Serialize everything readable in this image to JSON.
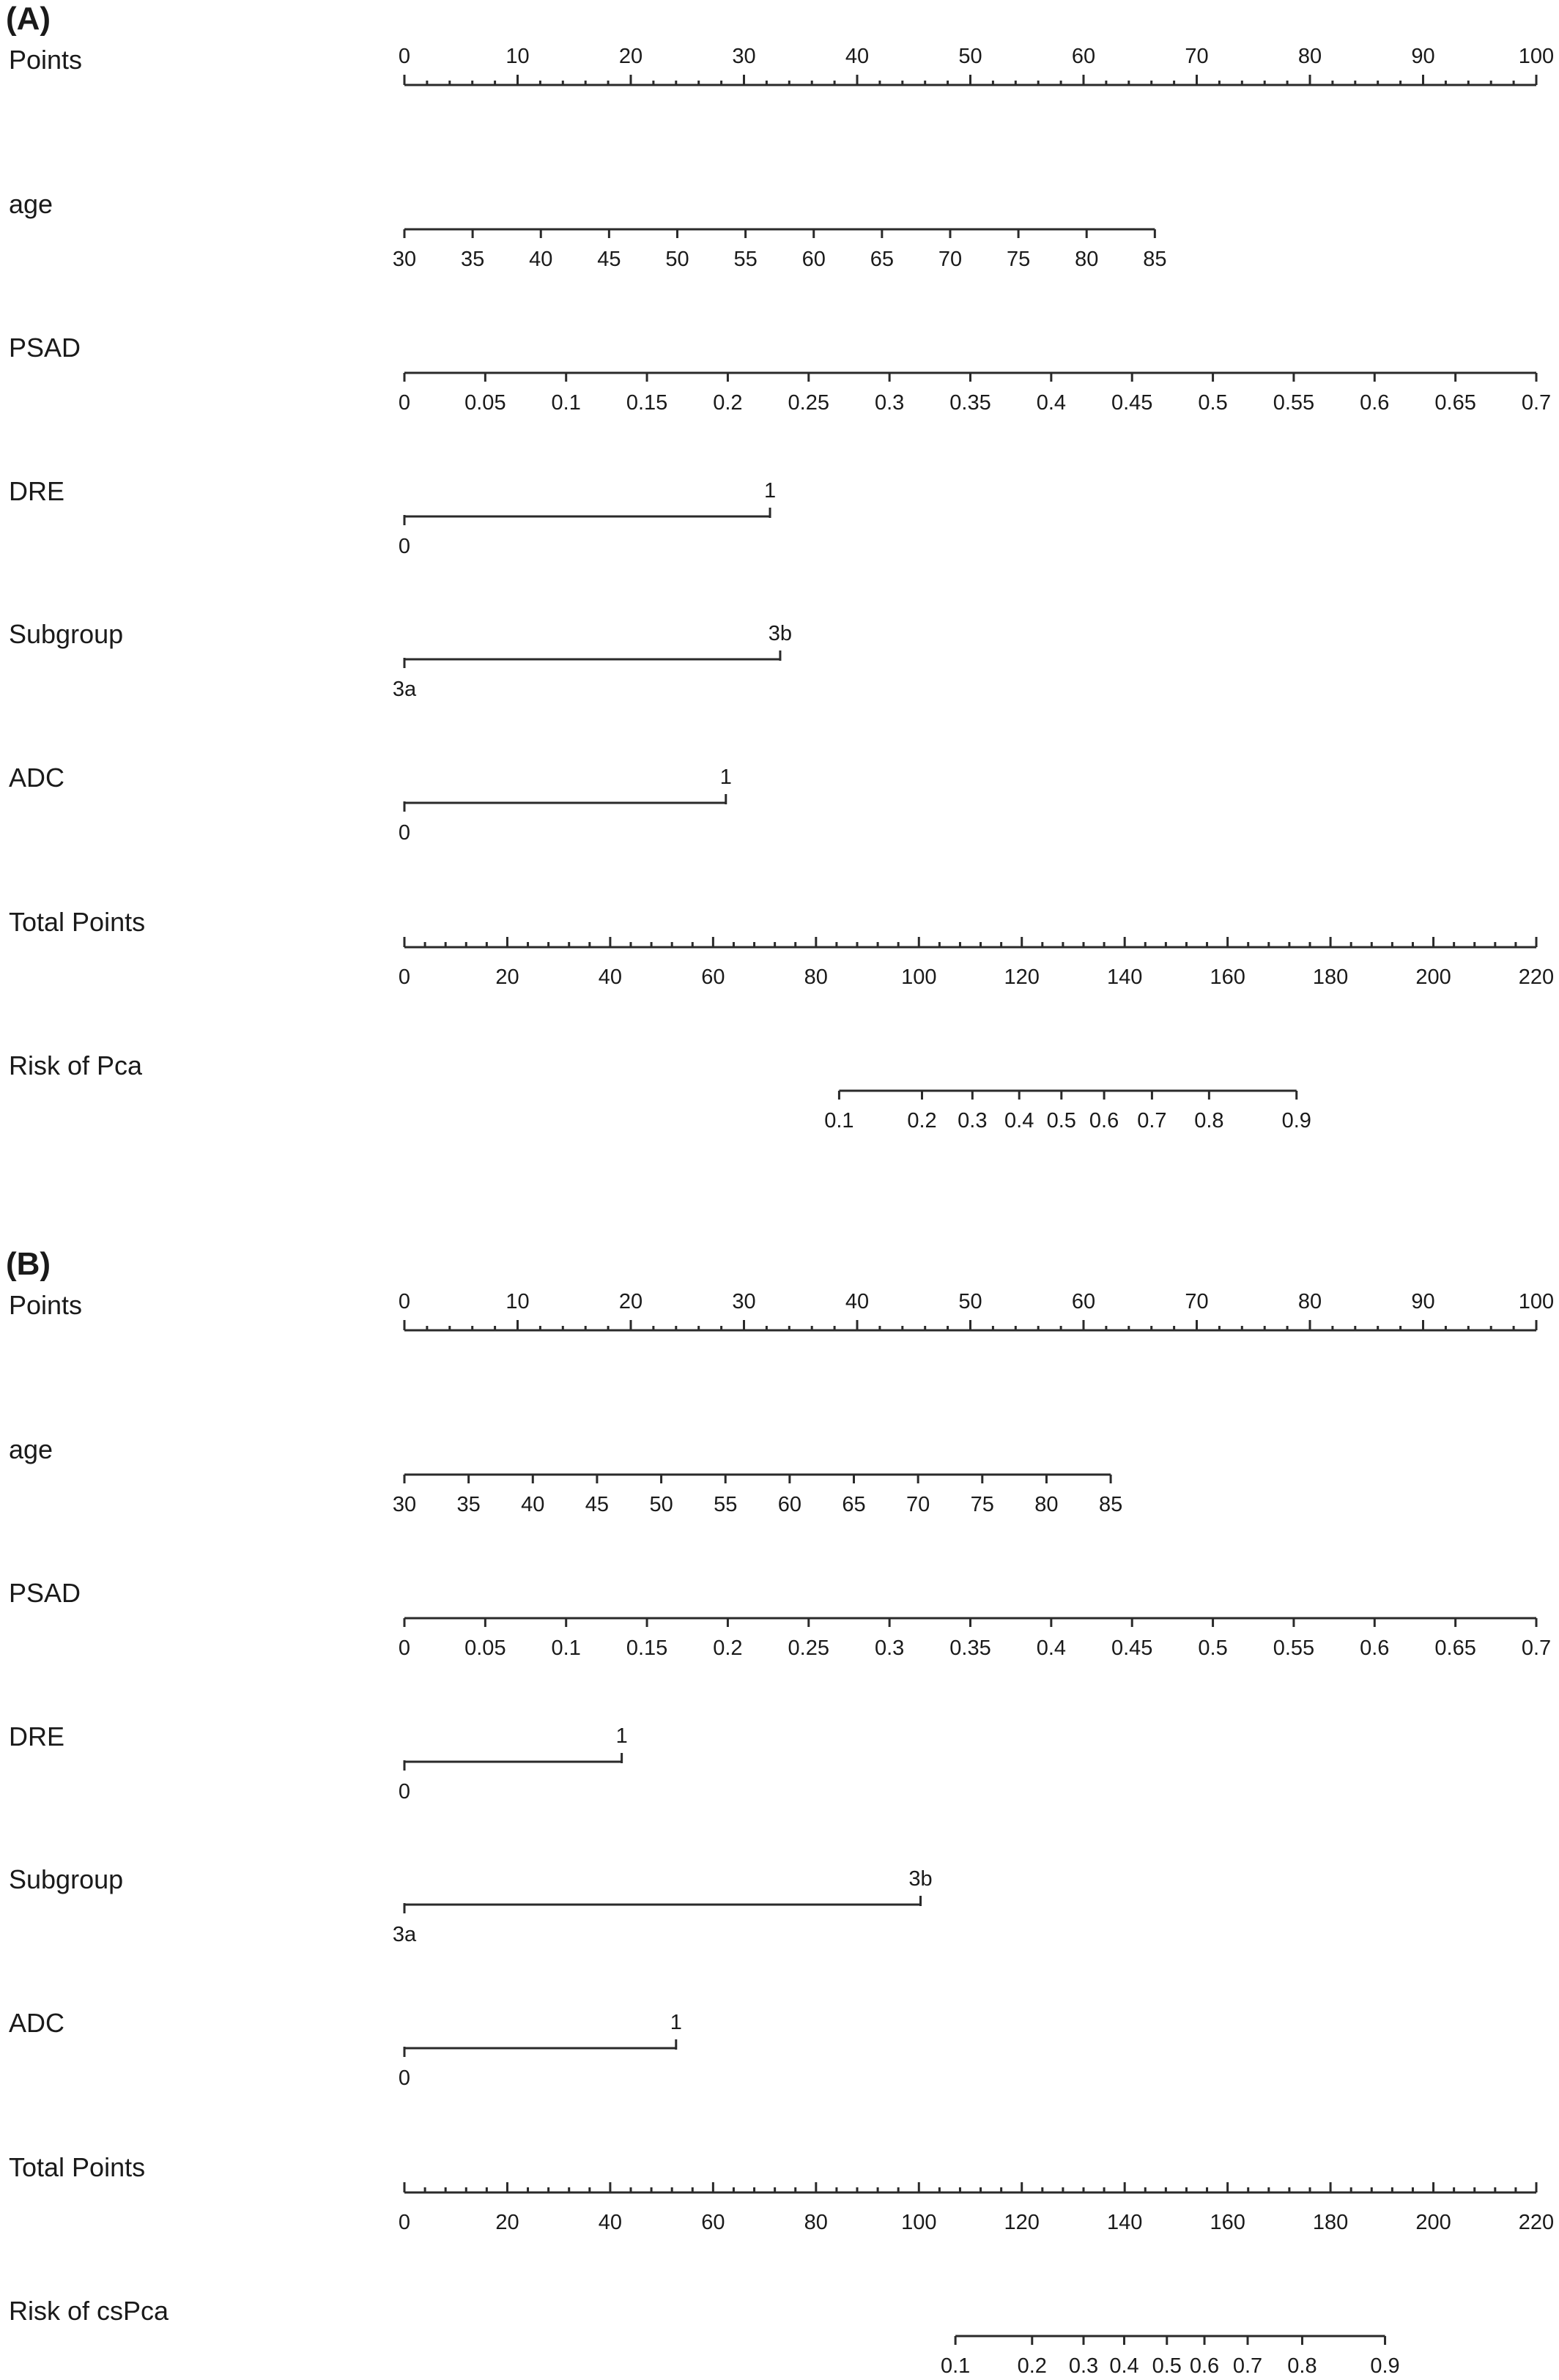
{
  "chart_data": [
    {
      "type": "nomogram",
      "panel_label": "(A)",
      "points_scale": [
        0,
        100
      ],
      "rows": [
        {
          "label": "Points",
          "kind": "points",
          "ticks": [
            0,
            10,
            20,
            30,
            40,
            50,
            60,
            70,
            80,
            90,
            100
          ],
          "minor_step": 2
        },
        {
          "label": "age",
          "kind": "continuous",
          "ticks": [
            30,
            35,
            40,
            45,
            50,
            55,
            60,
            65,
            70,
            75,
            80,
            85
          ],
          "points_range": [
            0,
            66.3
          ]
        },
        {
          "label": "PSAD",
          "kind": "continuous",
          "ticks": [
            0,
            0.05,
            0.1,
            0.15,
            0.2,
            0.25,
            0.3,
            0.35,
            0.4,
            0.45,
            0.5,
            0.55,
            0.6,
            0.65,
            0.7
          ],
          "points_range": [
            0,
            100
          ]
        },
        {
          "label": "DRE",
          "kind": "categorical",
          "levels": [
            {
              "name": "0",
              "points": 0
            },
            {
              "name": "1",
              "points": 32.3
            }
          ]
        },
        {
          "label": "Subgroup",
          "kind": "categorical",
          "levels": [
            {
              "name": "3a",
              "points": 0
            },
            {
              "name": "3b",
              "points": 33.2
            }
          ]
        },
        {
          "label": "ADC",
          "kind": "categorical",
          "levels": [
            {
              "name": "0",
              "points": 0
            },
            {
              "name": "1",
              "points": 28.4
            }
          ]
        },
        {
          "label": "Total Points",
          "kind": "total",
          "ticks": [
            0,
            20,
            40,
            60,
            80,
            100,
            120,
            140,
            160,
            180,
            200,
            220
          ],
          "range": [
            0,
            220
          ],
          "minor_step": 4
        },
        {
          "label": "Risk of Pca",
          "kind": "risk",
          "ticks": [
            {
              "label": "0.1",
              "total": 84.5
            },
            {
              "label": "0.2",
              "total": 100.6
            },
            {
              "label": "0.3",
              "total": 110.4
            },
            {
              "label": "0.4",
              "total": 119.5
            },
            {
              "label": "0.5",
              "total": 127.7
            },
            {
              "label": "0.6",
              "total": 136.0
            },
            {
              "label": "0.7",
              "total": 145.3
            },
            {
              "label": "0.8",
              "total": 156.4
            },
            {
              "label": "0.9",
              "total": 173.4
            }
          ]
        }
      ]
    },
    {
      "type": "nomogram",
      "panel_label": "(B)",
      "points_scale": [
        0,
        100
      ],
      "rows": [
        {
          "label": "Points",
          "kind": "points",
          "ticks": [
            0,
            10,
            20,
            30,
            40,
            50,
            60,
            70,
            80,
            90,
            100
          ],
          "minor_step": 2
        },
        {
          "label": "age",
          "kind": "continuous",
          "ticks": [
            30,
            35,
            40,
            45,
            50,
            55,
            60,
            65,
            70,
            75,
            80,
            85
          ],
          "points_range": [
            0,
            62.4
          ]
        },
        {
          "label": "PSAD",
          "kind": "continuous",
          "ticks": [
            0,
            0.05,
            0.1,
            0.15,
            0.2,
            0.25,
            0.3,
            0.35,
            0.4,
            0.45,
            0.5,
            0.55,
            0.6,
            0.65,
            0.7
          ],
          "points_range": [
            0,
            100
          ]
        },
        {
          "label": "DRE",
          "kind": "categorical",
          "levels": [
            {
              "name": "0",
              "points": 0
            },
            {
              "name": "1",
              "points": 19.2
            }
          ]
        },
        {
          "label": "Subgroup",
          "kind": "categorical",
          "levels": [
            {
              "name": "3a",
              "points": 0
            },
            {
              "name": "3b",
              "points": 45.6
            }
          ]
        },
        {
          "label": "ADC",
          "kind": "categorical",
          "levels": [
            {
              "name": "0",
              "points": 0
            },
            {
              "name": "1",
              "points": 24.0
            }
          ]
        },
        {
          "label": "Total Points",
          "kind": "total",
          "ticks": [
            0,
            20,
            40,
            60,
            80,
            100,
            120,
            140,
            160,
            180,
            200,
            220
          ],
          "range": [
            0,
            220
          ],
          "minor_step": 4
        },
        {
          "label": "Risk of csPca",
          "kind": "risk",
          "ticks": [
            {
              "label": "0.1",
              "total": 107.1
            },
            {
              "label": "0.2",
              "total": 122.0
            },
            {
              "label": "0.3",
              "total": 132.0
            },
            {
              "label": "0.4",
              "total": 139.9
            },
            {
              "label": "0.5",
              "total": 148.2
            },
            {
              "label": "0.6",
              "total": 155.5
            },
            {
              "label": "0.7",
              "total": 163.9
            },
            {
              "label": "0.8",
              "total": 174.5
            },
            {
              "label": "0.9",
              "total": 190.6
            }
          ]
        }
      ]
    }
  ]
}
